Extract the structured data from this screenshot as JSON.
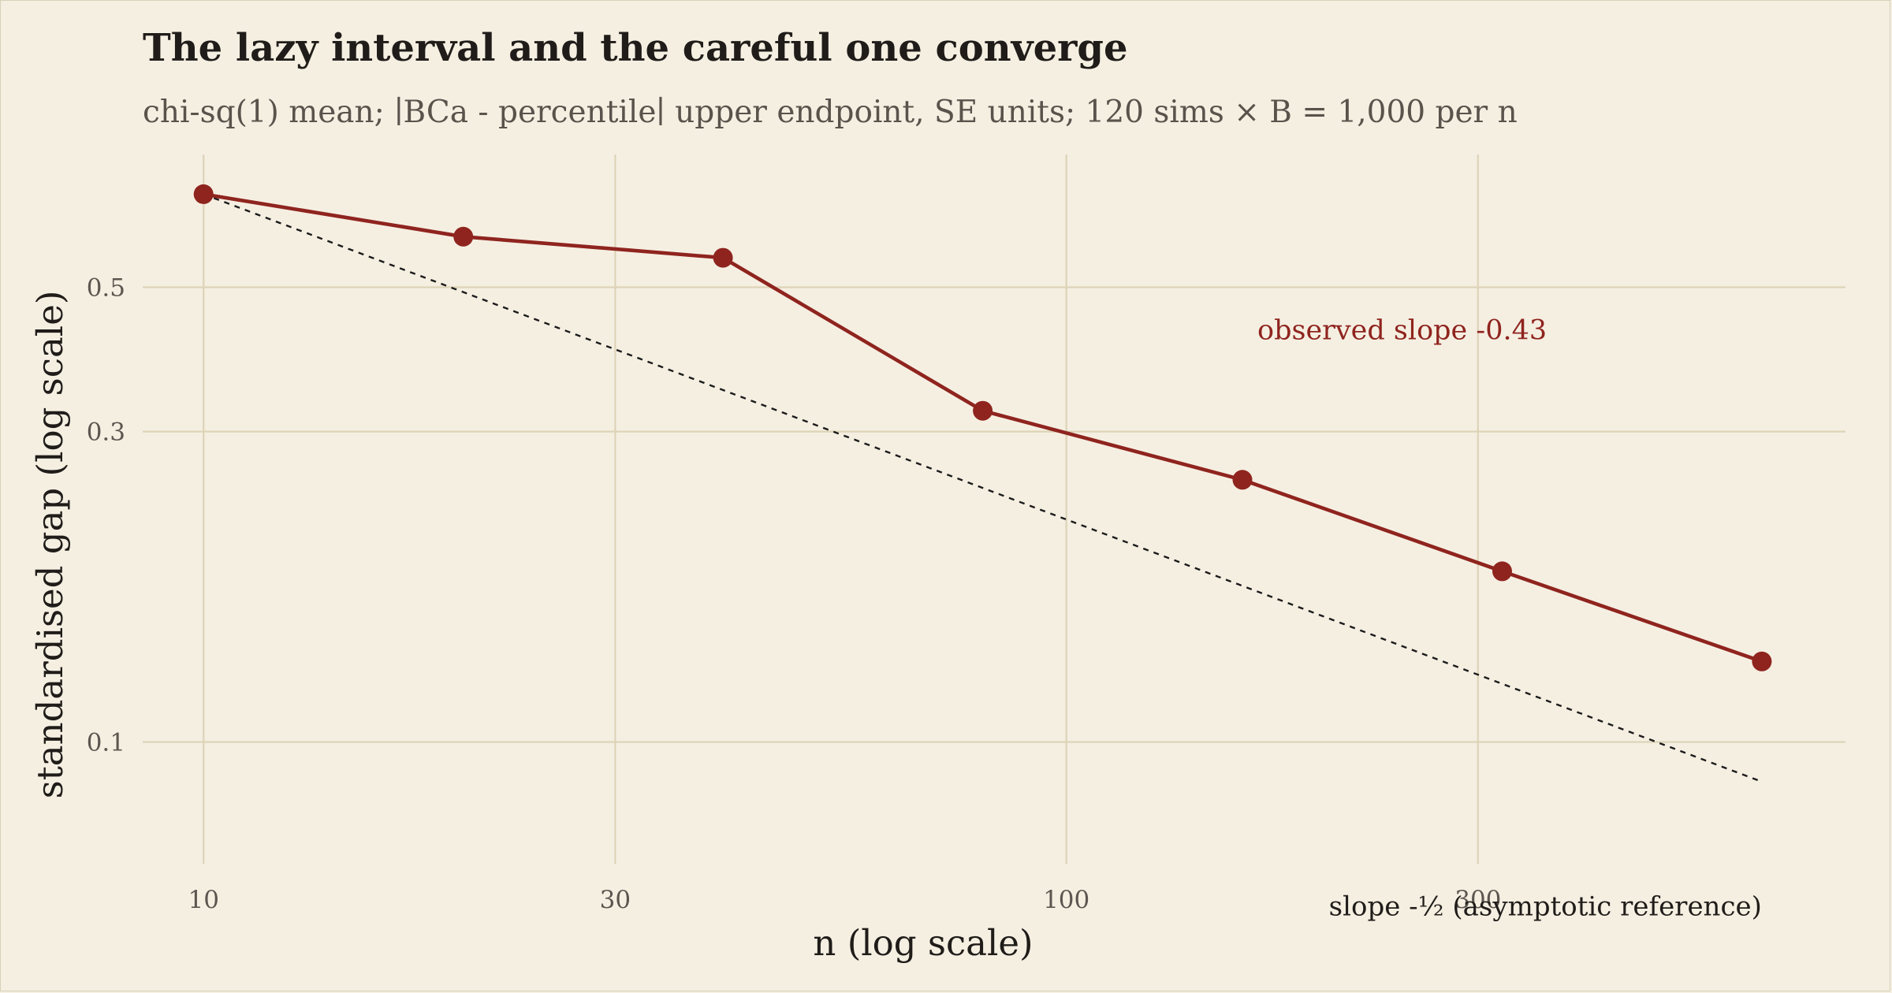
{
  "chart_data": {
    "type": "line",
    "title": "The lazy interval and the careful one converge",
    "subtitle": "chi-sq(1) mean; ∣BCa - percentile∣ upper endpoint, SE units; 120 sims × B = 1,000 per n",
    "xlabel": "n (log scale)",
    "ylabel": "standardised gap (log scale)",
    "x_scale": "log",
    "y_scale": "log",
    "xlim": [
      8.5,
      800
    ],
    "ylim": [
      0.065,
      0.8
    ],
    "x_ticks": [
      {
        "value": 10,
        "label": "10"
      },
      {
        "value": 30,
        "label": "30"
      },
      {
        "value": 100,
        "label": "100"
      },
      {
        "value": 300,
        "label": "300"
      }
    ],
    "y_ticks": [
      {
        "value": 0.1,
        "label": "0.1"
      },
      {
        "value": 0.3,
        "label": "0.3"
      },
      {
        "value": 0.5,
        "label": "0.5"
      }
    ],
    "grid": true,
    "legend": "none",
    "series": [
      {
        "x": [
          10,
          20,
          40,
          80,
          160,
          320,
          640
        ],
        "y": [
          0.695,
          0.598,
          0.555,
          0.323,
          0.253,
          0.183,
          0.133
        ],
        "color": "#8f241e",
        "style": "solid-with-markers"
      },
      {
        "x": [
          10,
          640
        ],
        "y": [
          0.695,
          0.0869
        ],
        "color": "#1b1b1b",
        "style": "dotted"
      }
    ],
    "annotations": [
      {
        "text": "observed slope -0.43",
        "x": 245,
        "y": 0.43,
        "color": "#8f241e"
      },
      {
        "text": "slope -½ (asymptotic reference)",
        "x": 640,
        "y": 0.056,
        "color": "#1f1c19"
      }
    ]
  }
}
